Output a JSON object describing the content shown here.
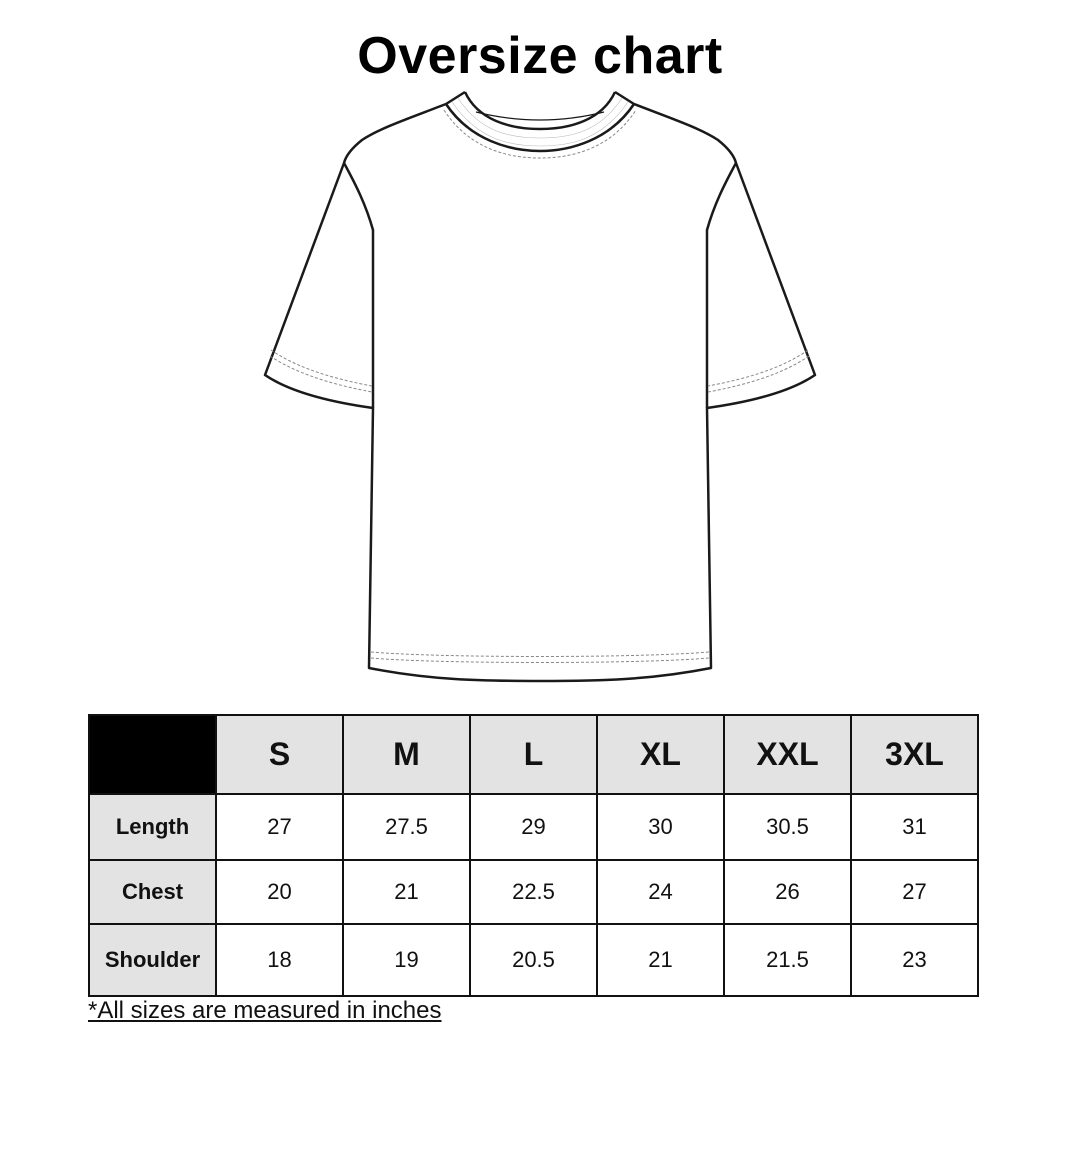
{
  "title": "Oversize chart",
  "note": "*All sizes are measured in inches",
  "chart_data": {
    "type": "table",
    "title": "Oversize chart",
    "columns": [
      "S",
      "M",
      "L",
      "XL",
      "XXL",
      "3XL"
    ],
    "rows": [
      {
        "label": "Length",
        "values": [
          "27",
          "27.5",
          "29",
          "30",
          "30.5",
          "31"
        ]
      },
      {
        "label": "Chest",
        "values": [
          "20",
          "21",
          "22.5",
          "24",
          "26",
          "27"
        ]
      },
      {
        "label": "Shoulder",
        "values": [
          "18",
          "19",
          "20.5",
          "21",
          "21.5",
          "23"
        ]
      }
    ],
    "unit_note": "*All sizes are measured in inches",
    "colors": {
      "header_bg": "#e3e3e3",
      "corner": "#000000",
      "border": "#111111"
    }
  }
}
